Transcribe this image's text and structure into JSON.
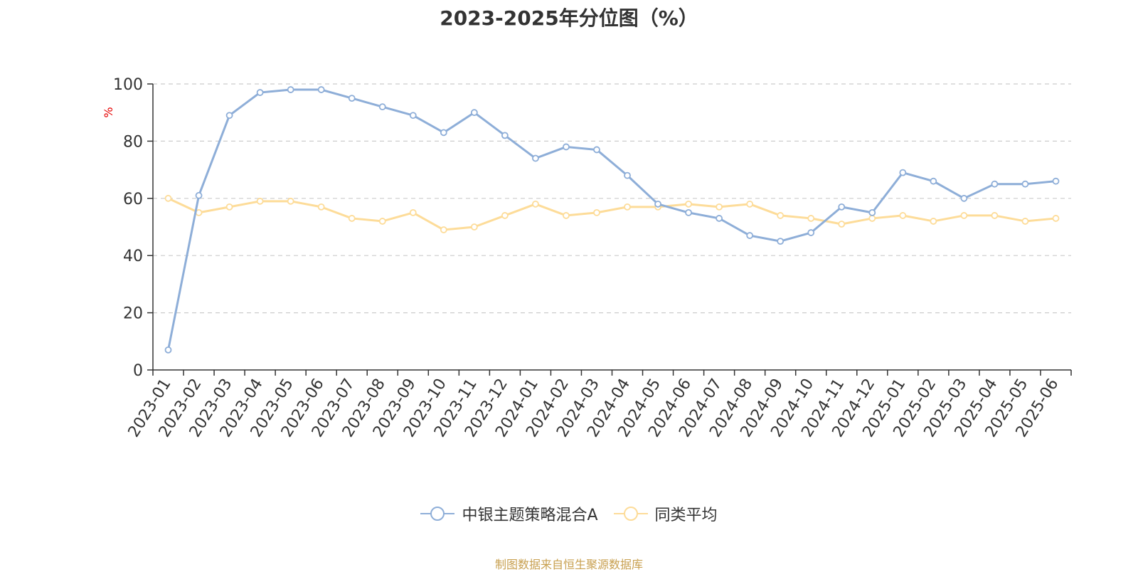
{
  "colors": {
    "series1": "#8eaed8",
    "series2": "#fddc99",
    "axis": "#333333",
    "grid": "#cccccc",
    "ylabel": "#e60000",
    "source": "#c8a050"
  },
  "source_note": "制图数据来自恒生聚源数据库",
  "chart_data": {
    "type": "line",
    "title": "2023-2025年分位图（%）",
    "xlabel": "",
    "ylabel": "%",
    "ylim": [
      0,
      100
    ],
    "yticks": [
      0,
      20,
      40,
      60,
      80,
      100
    ],
    "grid": "horizontal dashed",
    "legend_position": "bottom-center",
    "categories": [
      "2023-01",
      "2023-02",
      "2023-03",
      "2023-04",
      "2023-05",
      "2023-06",
      "2023-07",
      "2023-08",
      "2023-09",
      "2023-10",
      "2023-11",
      "2023-12",
      "2024-01",
      "2024-02",
      "2024-03",
      "2024-04",
      "2024-05",
      "2024-06",
      "2024-07",
      "2024-08",
      "2024-09",
      "2024-10",
      "2024-11",
      "2024-12",
      "2025-01",
      "2025-02",
      "2025-03",
      "2025-04",
      "2025-05",
      "2025-06"
    ],
    "series": [
      {
        "name": "中银主题策略混合A",
        "values": [
          7,
          61,
          89,
          97,
          98,
          98,
          95,
          92,
          89,
          83,
          90,
          82,
          74,
          78,
          77,
          68,
          58,
          55,
          53,
          47,
          45,
          48,
          57,
          55,
          69,
          66,
          60,
          65,
          65,
          66
        ]
      },
      {
        "name": "同类平均",
        "values": [
          60,
          55,
          57,
          59,
          59,
          57,
          53,
          52,
          55,
          49,
          50,
          54,
          58,
          54,
          55,
          57,
          57,
          58,
          57,
          58,
          54,
          53,
          51,
          53,
          54,
          52,
          54,
          54,
          52,
          53
        ]
      }
    ]
  }
}
